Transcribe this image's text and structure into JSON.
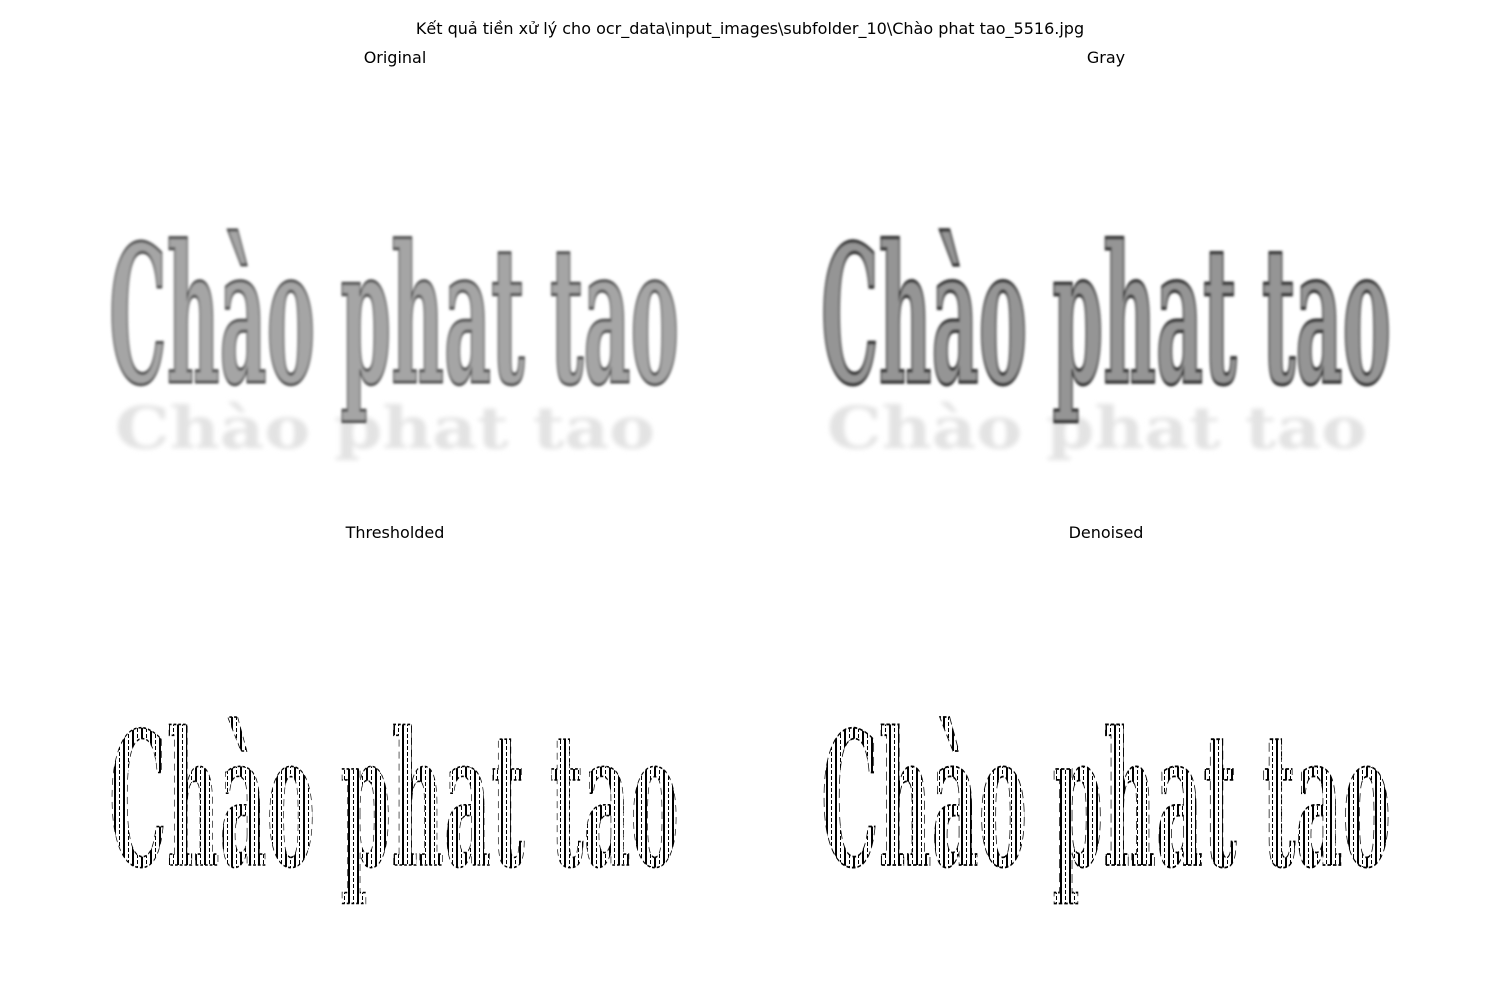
{
  "figure": {
    "suptitle": "Kết quả tiền xử lý cho ocr_data\\input_images\\subfolder_10\\Chào phat tao_5516.jpg"
  },
  "panels": [
    {
      "title": "Original"
    },
    {
      "title": "Gray"
    },
    {
      "title": "Thresholded"
    },
    {
      "title": "Denoised"
    }
  ],
  "image": {
    "text": "Chào phat tao"
  },
  "colors": {
    "background": "#ffffff",
    "text": "#000000",
    "original_fill": "#9a9a9a",
    "gray_fill": "#8a8a8a",
    "stroke_dark": "#333333",
    "binary": "#000000"
  }
}
